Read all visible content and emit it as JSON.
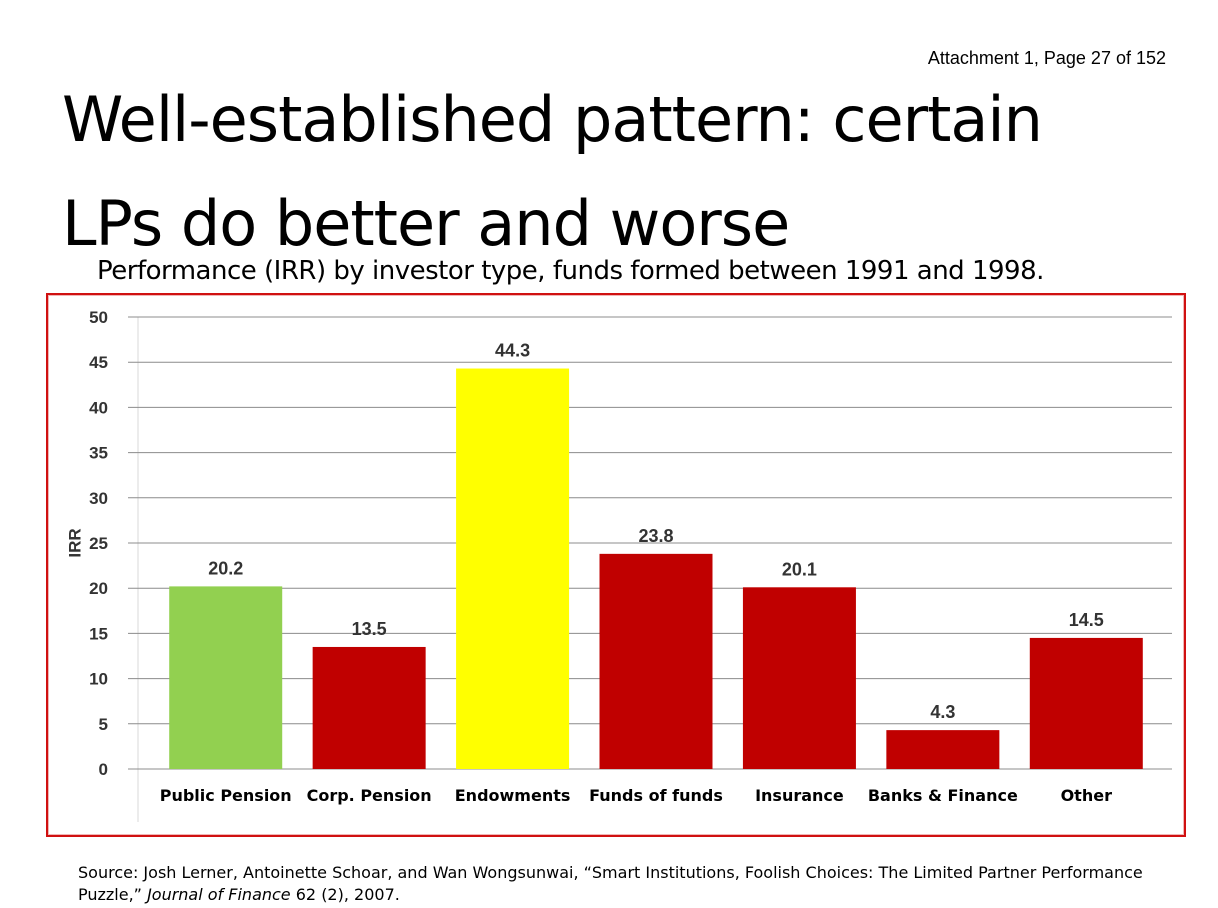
{
  "header": {
    "attachment": "Attachment 1, Page 27 of 152",
    "title_line1": "Well-established pattern: certain",
    "title_line2": "LPs do better and worse",
    "subtitle": "Performance (IRR) by investor type, funds formed between 1991 and 1998."
  },
  "chart_data": {
    "type": "bar",
    "categories": [
      "Public Pension",
      "Corp. Pension",
      "Endowments",
      "Funds of funds",
      "Insurance",
      "Banks & Finance",
      "Other"
    ],
    "values": [
      20.2,
      13.5,
      44.3,
      23.8,
      20.1,
      4.3,
      14.5
    ],
    "value_labels": [
      "20.2",
      "13.5",
      "44.3",
      "23.8",
      "20.1",
      "4.3",
      "14.5"
    ],
    "colors": [
      "#92d050",
      "#c00000",
      "#ffff00",
      "#c00000",
      "#c00000",
      "#c00000",
      "#c00000"
    ],
    "ylabel": "IRR",
    "xlabel": "",
    "ylim": [
      0,
      50
    ],
    "yticks": [
      0,
      5,
      10,
      15,
      20,
      25,
      30,
      35,
      40,
      45,
      50
    ],
    "grid": true,
    "frame_color": "#d01010"
  },
  "source": {
    "prefix": "Source: Josh Lerner, Antoinette Schoar, and Wan Wongsunwai, “Smart Institutions, Foolish Choices: The Limited Partner Performance  Puzzle,” ",
    "journal": "Journal of Finance",
    "suffix": " 62 (2), 2007."
  }
}
